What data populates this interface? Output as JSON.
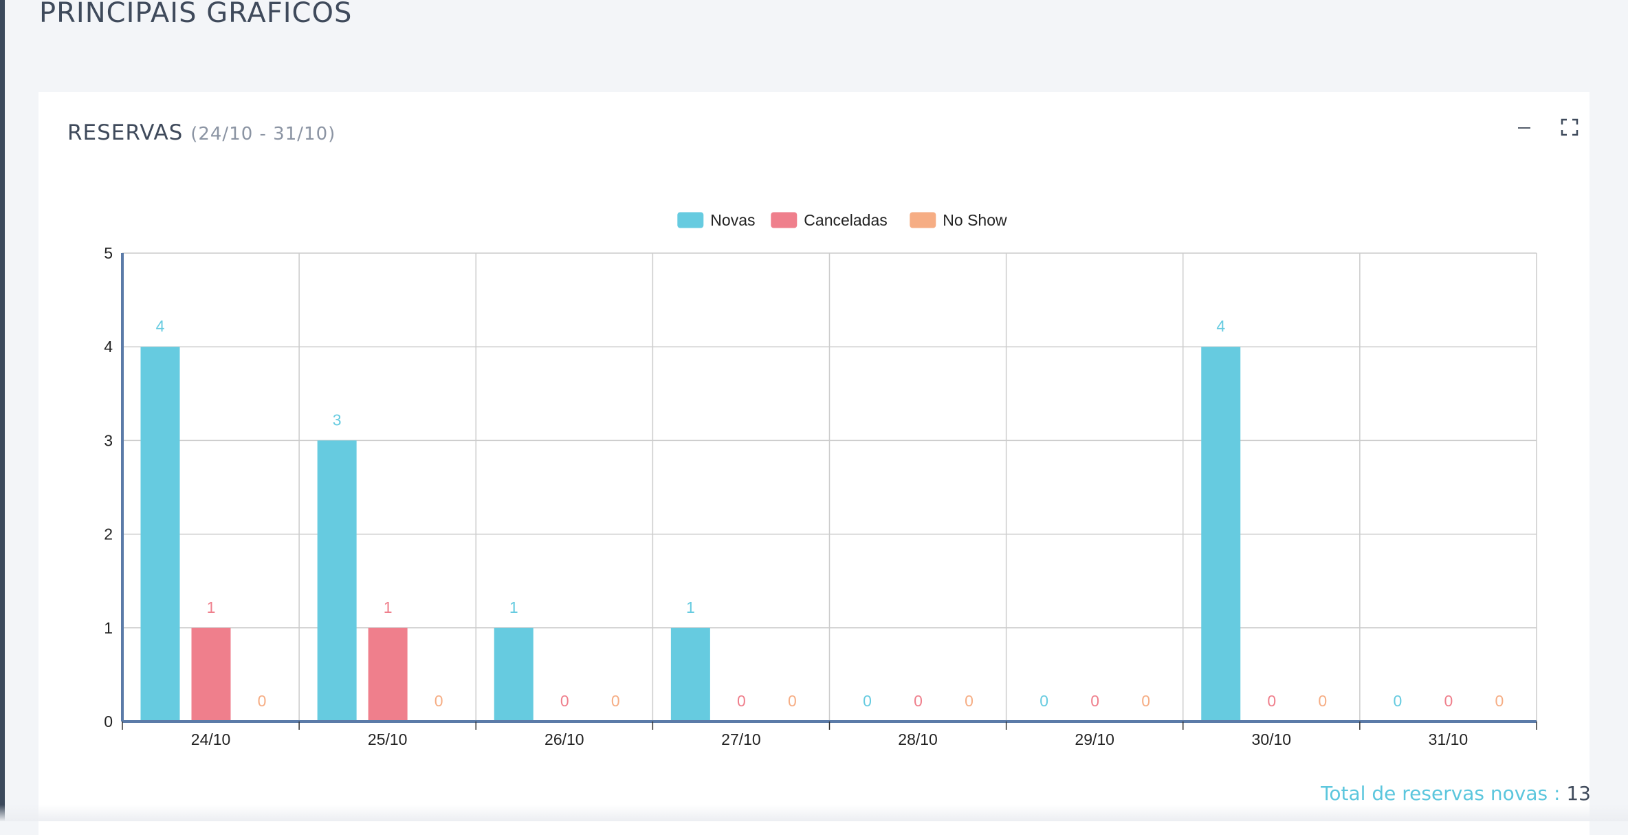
{
  "page": {
    "title": "PRINCIPAIS GRÁFICOS"
  },
  "card": {
    "title": "RESERVAS",
    "range": "(24/10 - 31/10)",
    "minimize_icon": "minus-icon",
    "expand_icon": "fullscreen-icon"
  },
  "total": {
    "label": "Total de reservas novas :",
    "value": "13"
  },
  "colors": {
    "novas": "#66cbe0",
    "canceladas": "#ef7f8c",
    "noshow": "#f6ad84",
    "grid": "#cccccc",
    "axis": "#5b7ba8"
  },
  "chart_data": {
    "type": "bar",
    "categories": [
      "24/10",
      "25/10",
      "26/10",
      "27/10",
      "28/10",
      "29/10",
      "30/10",
      "31/10"
    ],
    "series": [
      {
        "name": "Novas",
        "color": "#66cbe0",
        "values": [
          4,
          3,
          1,
          1,
          0,
          0,
          4,
          0
        ]
      },
      {
        "name": "Canceladas",
        "color": "#ef7f8c",
        "values": [
          1,
          1,
          0,
          0,
          0,
          0,
          0,
          0
        ]
      },
      {
        "name": "No Show",
        "color": "#f6ad84",
        "values": [
          0,
          0,
          0,
          0,
          0,
          0,
          0,
          0
        ]
      }
    ],
    "title": "",
    "xlabel": "",
    "ylabel": "",
    "ylim": [
      0,
      5
    ],
    "yticks": [
      "0",
      "1",
      "2",
      "3",
      "4",
      "5"
    ],
    "grid": true,
    "legend": "top-center",
    "data_labels": true
  }
}
